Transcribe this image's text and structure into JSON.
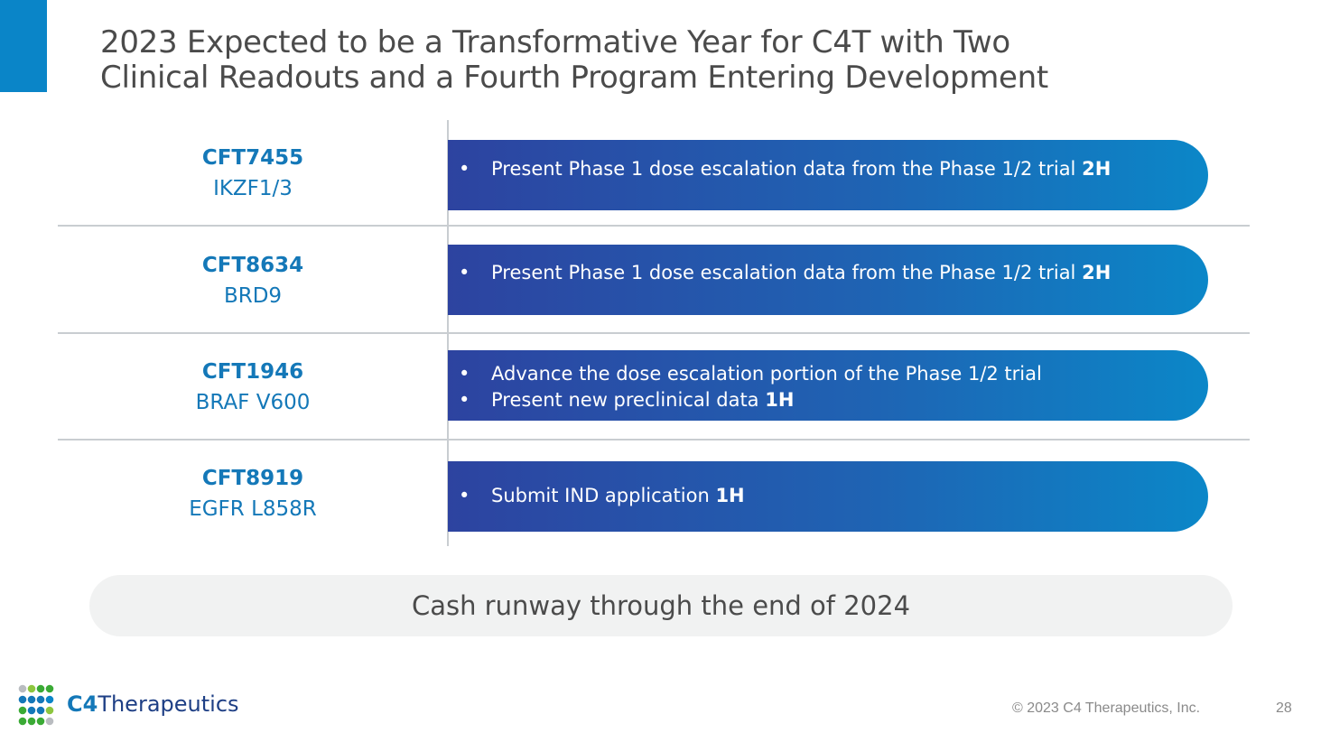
{
  "title": {
    "line1": "2023 Expected to be a Transformative Year for C4T with Two",
    "line2": "Clinical Readouts and a Fourth Program Entering Development"
  },
  "programs": [
    {
      "code": "CFT7455",
      "target": "IKZF1/3",
      "bullets": [
        {
          "text": "Present Phase 1 dose escalation data from the Phase 1/2 trial ",
          "timing": "2H"
        }
      ]
    },
    {
      "code": "CFT8634",
      "target": "BRD9",
      "bullets": [
        {
          "text": "Present Phase 1 dose escalation data from the Phase 1/2 trial ",
          "timing": "2H"
        }
      ]
    },
    {
      "code": "CFT1946",
      "target": "BRAF V600",
      "bullets": [
        {
          "text": "Advance the dose escalation portion of the Phase 1/2 trial",
          "timing": ""
        },
        {
          "text": "Present new preclinical data ",
          "timing": "1H"
        }
      ]
    },
    {
      "code": "CFT8919",
      "target": "EGFR L858R",
      "bullets": [
        {
          "text": "Submit IND application ",
          "timing": "1H"
        }
      ]
    }
  ],
  "bullet_char": "•",
  "cash_runway": "Cash runway through the end of 2024",
  "logo": {
    "c4": "C4",
    "name": "Therapeutics"
  },
  "footer": {
    "copyright": "© 2023 C4 Therapeutics, Inc.",
    "page_number": "28"
  },
  "colors": {
    "accent": "#0a85c8",
    "program_text": "#1478b8",
    "pill_start": "#2d43a0",
    "pill_end": "#0b87c8"
  }
}
